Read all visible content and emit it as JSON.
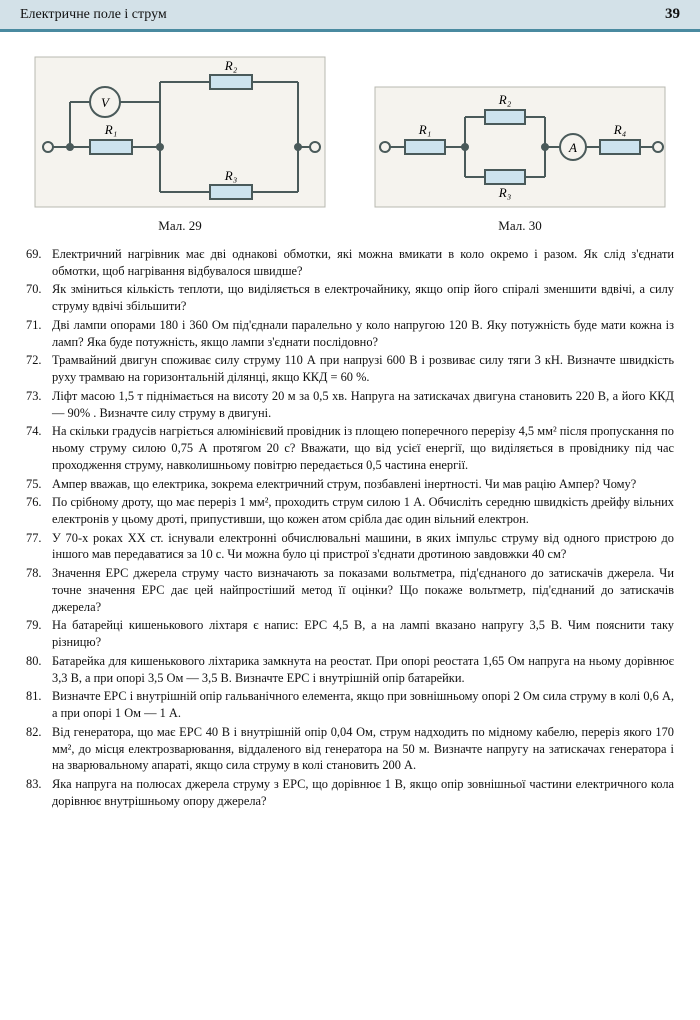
{
  "header": {
    "title": "Електричне поле і струм",
    "page_number": "39"
  },
  "figures": {
    "fig29": {
      "caption": "Мал. 29",
      "labels": {
        "V": "V",
        "R1": "R₁",
        "R2": "R₂",
        "R3": "R₃"
      }
    },
    "fig30": {
      "caption": "Мал. 30",
      "labels": {
        "A": "A",
        "R1": "R₁",
        "R2": "R₂",
        "R3": "R₃",
        "R4": "R₄"
      }
    }
  },
  "problems": [
    {
      "n": "69.",
      "t": "Електричний нагрівник має дві однакові обмотки, які можна вмикати в коло окремо і разом. Як слід з'єднати обмотки, щоб нагрівання відбувалося швидше?"
    },
    {
      "n": "70.",
      "t": "Як зміниться кількість теплоти, що виділяється в електрочайнику, якщо опір його спіралі зменшити вдвічі, а силу струму вдвічі збільшити?"
    },
    {
      "n": "71.",
      "t": "Дві лампи опорами 180 і 360 Ом під'єднали паралельно у коло напругою 120 В. Яку потужність буде мати кожна із ламп? Яка буде потужність, якщо лампи з'єднати послідовно?"
    },
    {
      "n": "72.",
      "t": "Трамвайний двигун споживає силу струму 110 А при напрузі 600 В і розвиває силу тяги 3 кН. Визначте швидкість руху трамваю на горизонтальній ділянці, якщо ККД = 60 %."
    },
    {
      "n": "73.",
      "t": "Ліфт масою 1,5 т піднімається на висоту 20 м за 0,5 хв. Напруга на затискачах двигуна становить 220 В, а його ККД — 90% . Визначте силу струму в двигуні."
    },
    {
      "n": "74.",
      "t": "На скільки градусів нагріється алюмінієвий провідник із площею поперечного перерізу 4,5 мм² після пропускання по ньому струму силою 0,75 А протягом 20 с? Вважати, що від усієї енергії, що виділяється в провіднику під час проходження струму, навколишньому повітрю передається 0,5 частина енергії."
    },
    {
      "n": "75.",
      "t": "Ампер вважав, що електрика, зокрема електричний струм, позбавлені інертності. Чи мав рацію Ампер? Чому?"
    },
    {
      "n": "76.",
      "t": "По срібному дроту, що має переріз 1 мм², проходить струм силою 1 А. Обчисліть середню швидкість дрейфу вільних електронів у цьому дроті, припустивши, що кожен атом срібла дає один вільний електрон."
    },
    {
      "n": "77.",
      "t": "У 70-х роках XX ст. існували електронні обчислювальні машини, в яких імпульс струму від одного пристрою до іншого мав передаватися за 10 с. Чи можна було ці пристрої з'єднати дротиною завдовжки 40 см?"
    },
    {
      "n": "78.",
      "t": "Значення ЕРС джерела струму часто визначають за показами вольтметра, під'єднаного до затискачів джерела. Чи точне значення ЕРС дає цей найпростіший метод її оцінки? Що покаже вольтметр, під'єднаний до затискачів джерела?"
    },
    {
      "n": "79.",
      "t": "На батарейці кишенькового ліхтаря є напис: ЕРС 4,5 В, а на лампі вказано напругу 3,5 В. Чим пояснити таку різницю?"
    },
    {
      "n": "80.",
      "t": "Батарейка для кишенькового ліхтарика замкнута на реостат. При опорі реостата 1,65 Ом напруга на ньому дорівнює 3,3 В, а при опорі 3,5 Ом — 3,5 В. Визначте ЕРС і внутрішній опір батарейки."
    },
    {
      "n": "81.",
      "t": "Визначте ЕРС і внутрішній опір гальванічного елемента, якщо при зовнішньому опорі 2 Ом сила струму в колі 0,6 А, а при опорі 1 Ом — 1 А."
    },
    {
      "n": "82.",
      "t": "Від генератора, що має ЕРС 40 В і внутрішній опір 0,04 Ом, струм надходить по мідному кабелю, переріз якого 170 мм², до місця електрозварювання, віддаленого від генератора на 50 м. Визначте напругу на затискачах генератора і на зварювальному апараті, якщо сила струму в колі становить 200 А."
    },
    {
      "n": "83.",
      "t": "Яка напруга на полюсах джерела струму з ЕРС, що дорівнює 1 В, якщо опір зовнішньої частини електричного кола дорівнює внутрішньому опору джерела?"
    }
  ],
  "styling": {
    "header_bg": "#d3e1e8",
    "header_border": "#4a8aa0",
    "resistor_fill": "#cde3ee",
    "wire_color": "#4a5a5a",
    "font_size_body": 12.4
  }
}
